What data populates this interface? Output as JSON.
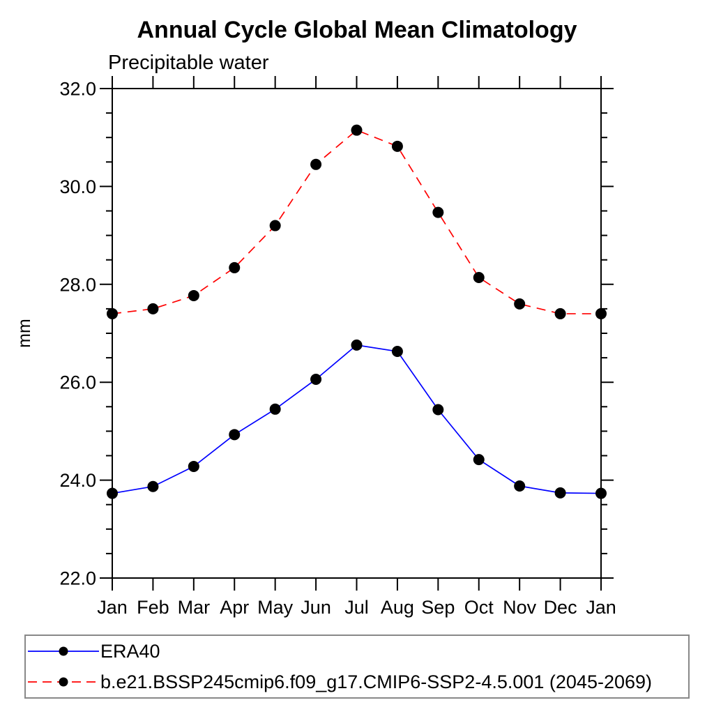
{
  "chart_data": {
    "type": "line",
    "title": "Annual Cycle Global Mean Climatology",
    "subtitle": "Precipitable water",
    "ylabel": "mm",
    "x_categories": [
      "Jan",
      "Feb",
      "Mar",
      "Apr",
      "May",
      "Jun",
      "Jul",
      "Aug",
      "Sep",
      "Oct",
      "Nov",
      "Dec",
      "Jan"
    ],
    "y_axis": {
      "min": 22.0,
      "max": 32.0,
      "major_step": 2.0,
      "minor_step": 0.5,
      "tick_labels": [
        "22.0",
        "24.0",
        "26.0",
        "28.0",
        "30.0",
        "32.0"
      ]
    },
    "grid": "off",
    "legend_position": "bottom-left-box",
    "series": [
      {
        "name": "ERA40",
        "color": "#0000ff",
        "line_style": "solid",
        "marker": "filled-circle",
        "marker_color": "#000000",
        "values": [
          23.73,
          23.87,
          24.28,
          24.93,
          25.45,
          26.06,
          26.76,
          26.63,
          25.44,
          24.42,
          23.88,
          23.74,
          23.73
        ]
      },
      {
        "name": "b.e21.BSSP245cmip6.f09_g17.CMIP6-SSP2-4.5.001 (2045-2069)",
        "color": "#ff0000",
        "line_style": "dashed",
        "marker": "filled-circle",
        "marker_color": "#000000",
        "values": [
          27.4,
          27.5,
          27.77,
          28.34,
          29.2,
          30.45,
          31.15,
          30.82,
          29.47,
          28.14,
          27.6,
          27.4,
          27.4
        ]
      }
    ],
    "colors": {
      "axis": "#000000",
      "legend_border": "#888888",
      "marker": "#000000"
    }
  }
}
